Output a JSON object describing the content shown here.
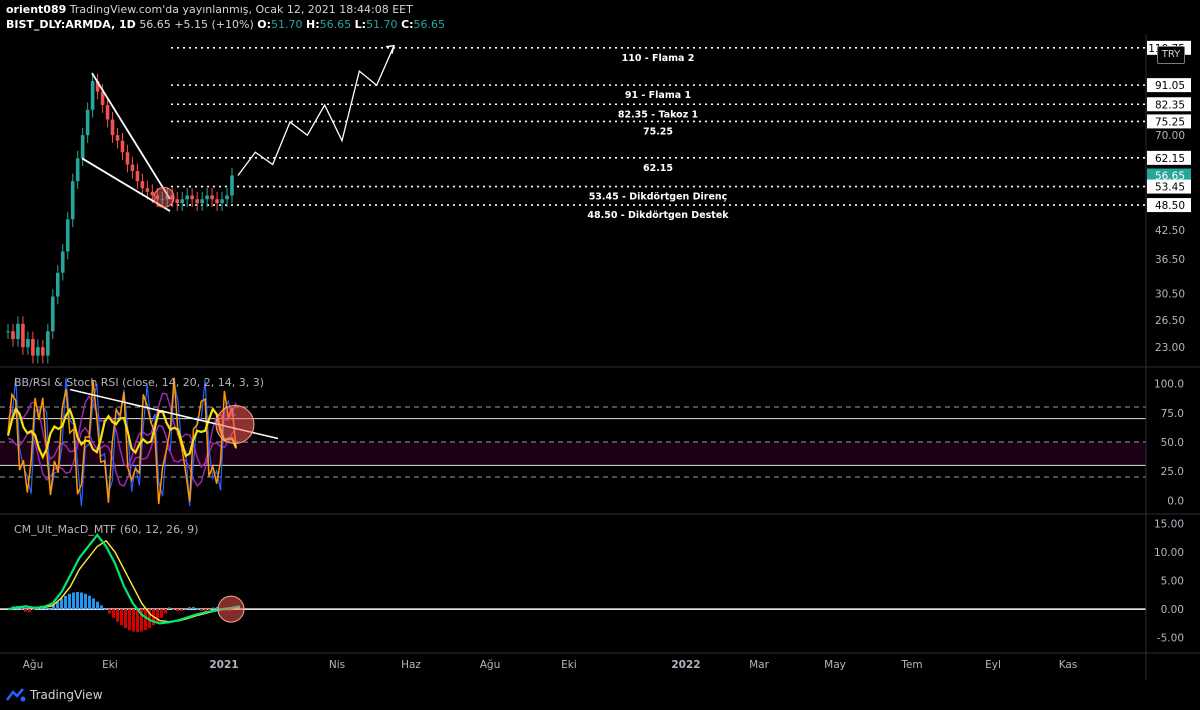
{
  "header": {
    "author": "orient089",
    "published": "TradingView.com'da yayınlanmış, Ocak 12, 2021 18:44:08 EET",
    "symbol": "BIST_DLY:ARMDA, 1D",
    "price": "56.65",
    "change": "+5.15 (+10%)",
    "o_label": "O:",
    "o": "51.70",
    "h_label": "H:",
    "h": "56.65",
    "l_label": "L:",
    "l": "51.70",
    "c_label": "C:",
    "c": "56.65"
  },
  "currency": "TRY",
  "colors": {
    "up": "#26a69a",
    "down": "#ef5350",
    "rsi": "#f5e10f",
    "stoch": "#ff9800",
    "stoch2": "#2962ff",
    "bb": "#9c27b0",
    "annot": "#ffffff",
    "macd_up": "#00e676",
    "macd_down": "#ff1744",
    "hist_pos": "#2196f3",
    "hist_neg": "#d50000"
  },
  "indicators": {
    "rsi_title": "BB/RSI & Stoch RSI (close, 14, 20, 2, 14, 3, 3)",
    "macd_title": "CM_Ult_MacD_MTF (60, 12, 26, 9)"
  },
  "chart_data": [
    {
      "type": "line",
      "title": "",
      "price_axis_labels": [
        "110.75",
        "91.05",
        "82.35",
        "75.25",
        "70.00",
        "62.15",
        "56.65",
        "53.45",
        "48.50",
        "42.50",
        "36.50",
        "30.50",
        "26.50",
        "23.00"
      ],
      "last_price": 56.65,
      "x_labels": [
        "Ağu",
        "Eki",
        "2021",
        "Nis",
        "Haz",
        "Ağu",
        "Eki",
        "2022",
        "Mar",
        "May",
        "Tem",
        "Eyl",
        "Kas"
      ],
      "levels": [
        {
          "value": 110.75,
          "label": "110 - Flama 2"
        },
        {
          "value": 91.05,
          "label": "91 - Flama 1"
        },
        {
          "value": 82.35,
          "label": "82.35 - Takoz 1"
        },
        {
          "value": 75.25,
          "label": "75.25"
        },
        {
          "value": 62.15,
          "label": "62.15"
        },
        {
          "value": 53.45,
          "label": "53.45 - Dikdörtgen Direnç"
        },
        {
          "value": 48.5,
          "label": "48.50 - Dikdörtgen Destek"
        }
      ],
      "projection_path": [
        56.65,
        64,
        60,
        75,
        70,
        82,
        68,
        98,
        91,
        112
      ],
      "price_series": [
        25,
        24,
        26,
        23,
        24,
        22,
        23,
        22,
        25,
        30,
        34,
        38,
        45,
        55,
        62,
        70,
        80,
        93,
        88,
        82,
        76,
        70,
        68,
        64,
        60,
        58,
        55,
        53,
        52,
        51,
        50,
        50,
        51,
        50,
        49,
        50,
        51,
        50,
        49,
        50,
        51,
        50,
        49,
        50,
        51,
        56.65
      ]
    },
    {
      "type": "line",
      "title": "BB/RSI & Stoch RSI (close, 14, 20, 2, 14, 3, 3)",
      "y_ticks": [
        "100.0",
        "75.0",
        "50.0",
        "25.0",
        "0.0"
      ],
      "ylim": [
        -10,
        110
      ],
      "bands": [
        80,
        70,
        50,
        30,
        20
      ]
    },
    {
      "type": "line",
      "title": "CM_Ult_MacD_MTF (60, 12, 26, 9)",
      "y_ticks": [
        "15.00",
        "10.00",
        "5.00",
        "0.00",
        "-5.00"
      ],
      "ylim": [
        -7,
        16
      ]
    }
  ],
  "footer": {
    "brand": "TradingView"
  }
}
